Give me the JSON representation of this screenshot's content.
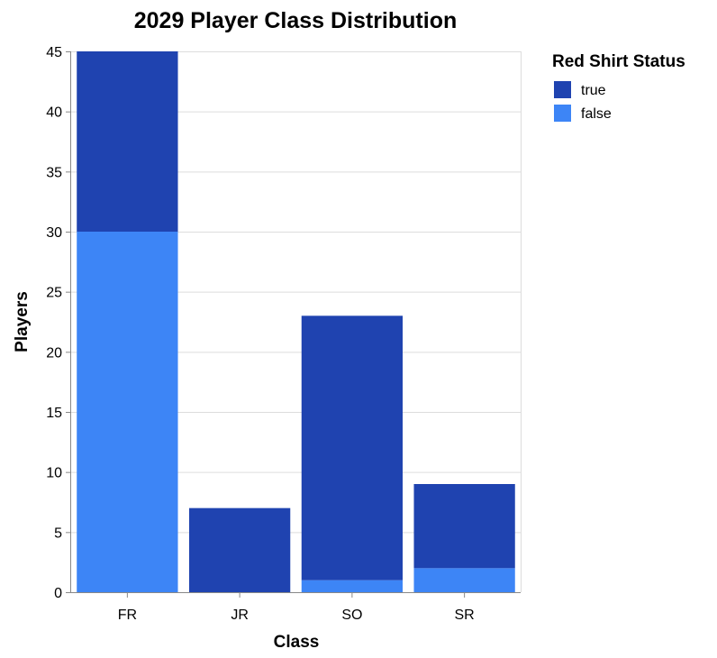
{
  "chart_data": {
    "type": "bar",
    "stacked": true,
    "title": "2029 Player Class Distribution",
    "xlabel": "Class",
    "ylabel": "Players",
    "ylim": [
      0,
      45
    ],
    "yticks": [
      0,
      5,
      10,
      15,
      20,
      25,
      30,
      35,
      40,
      45
    ],
    "categories": [
      "FR",
      "JR",
      "SO",
      "SR"
    ],
    "series": [
      {
        "name": "false",
        "color": "#3d85f6",
        "values": [
          30,
          0,
          1,
          2
        ]
      },
      {
        "name": "true",
        "color": "#1f43b0",
        "values": [
          15,
          7,
          22,
          7
        ]
      }
    ],
    "legend": {
      "title": "Red Shirt Status",
      "position": "top-right",
      "entries": [
        {
          "label": "true",
          "color": "#1f43b0"
        },
        {
          "label": "false",
          "color": "#3d85f6"
        }
      ]
    },
    "grid": true
  }
}
